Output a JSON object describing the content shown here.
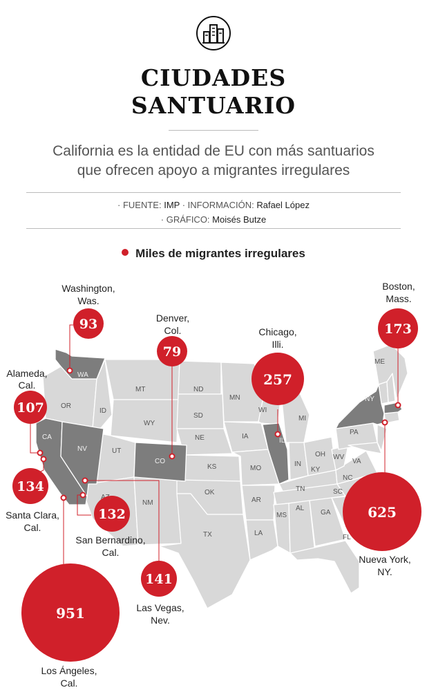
{
  "title_line1": "CIUDADES",
  "title_line2": "SANTUARIO",
  "icon": "city-buildings-icon",
  "subtitle_line1": "California es la entidad de EU con más santuarios",
  "subtitle_line2": "que ofrecen apoyo a migrantes irregulares",
  "credits": {
    "source_label": "· FUENTE:",
    "source_value": "IMP",
    "info_label": "· INFORMACIÓN:",
    "info_value": "Rafael López",
    "graphic_label": "· GRÁFICO:",
    "graphic_value": "Moisés Butze"
  },
  "legend": "Miles de migrantes irregulares",
  "colors": {
    "accent": "#d0202a",
    "map_light": "#d8d8d8",
    "map_dark": "#7d7d7d",
    "border": "#ffffff"
  },
  "highlighted_states": [
    "WA",
    "CA",
    "NV",
    "CO",
    "IL",
    "NY",
    "MA"
  ],
  "state_labels": [
    "WA",
    "OR",
    "CA",
    "NV",
    "ID",
    "MT",
    "WY",
    "UT",
    "CO",
    "AZ",
    "NM",
    "ND",
    "SD",
    "NE",
    "KS",
    "OK",
    "TX",
    "MN",
    "IA",
    "MO",
    "AR",
    "LA",
    "WI",
    "IL",
    "MI",
    "IN",
    "OH",
    "KY",
    "TN",
    "MS",
    "AL",
    "GA",
    "FL",
    "SC",
    "NC",
    "VA",
    "WV",
    "PA",
    "NY",
    "ME"
  ],
  "cities": [
    {
      "name_line1": "Washington,",
      "name_line2": "Was.",
      "value": 93
    },
    {
      "name_line1": "Denver,",
      "name_line2": "Col.",
      "value": 79
    },
    {
      "name_line1": "Chicago,",
      "name_line2": "Illi.",
      "value": 257
    },
    {
      "name_line1": "Boston,",
      "name_line2": "Mass.",
      "value": 173
    },
    {
      "name_line1": "Alameda,",
      "name_line2": "Cal.",
      "value": 107
    },
    {
      "name_line1": "Santa Clara,",
      "name_line2": "Cal.",
      "value": 134
    },
    {
      "name_line1": "San Bernardino,",
      "name_line2": "Cal.",
      "value": 132
    },
    {
      "name_line1": "Las Vegas,",
      "name_line2": "Nev.",
      "value": 141
    },
    {
      "name_line1": "Los Ángeles,",
      "name_line2": "Cal.",
      "value": 951
    },
    {
      "name_line1": "Nueva York,",
      "name_line2": "NY.",
      "value": 625
    }
  ]
}
